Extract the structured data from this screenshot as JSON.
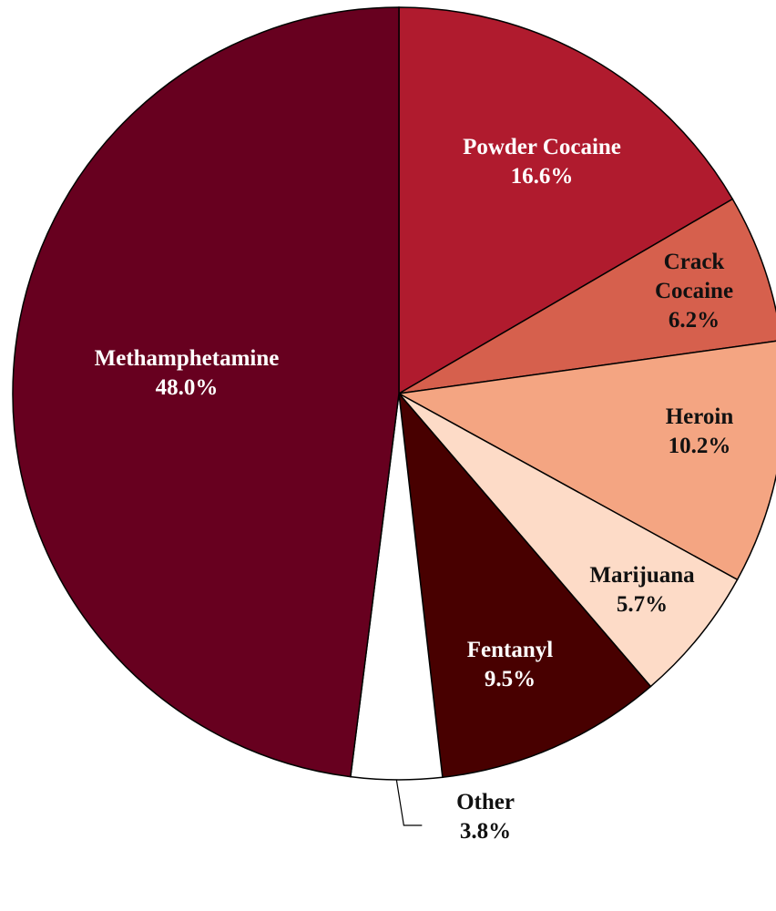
{
  "chart_data": {
    "type": "pie",
    "categories": [
      "Powder Cocaine",
      "Crack Cocaine",
      "Heroin",
      "Marijuana",
      "Fentanyl",
      "Other",
      "Methamphetamine"
    ],
    "values": [
      16.6,
      6.2,
      10.2,
      5.7,
      9.5,
      3.8,
      48.0
    ],
    "value_labels": [
      "16.6%",
      "6.2%",
      "10.2%",
      "5.7%",
      "9.5%",
      "3.8%",
      "48.0%"
    ],
    "colors": [
      "#b01b2e",
      "#d6604d",
      "#f4a582",
      "#fddbc7",
      "#480000",
      "#ffffff",
      "#67001f"
    ]
  }
}
